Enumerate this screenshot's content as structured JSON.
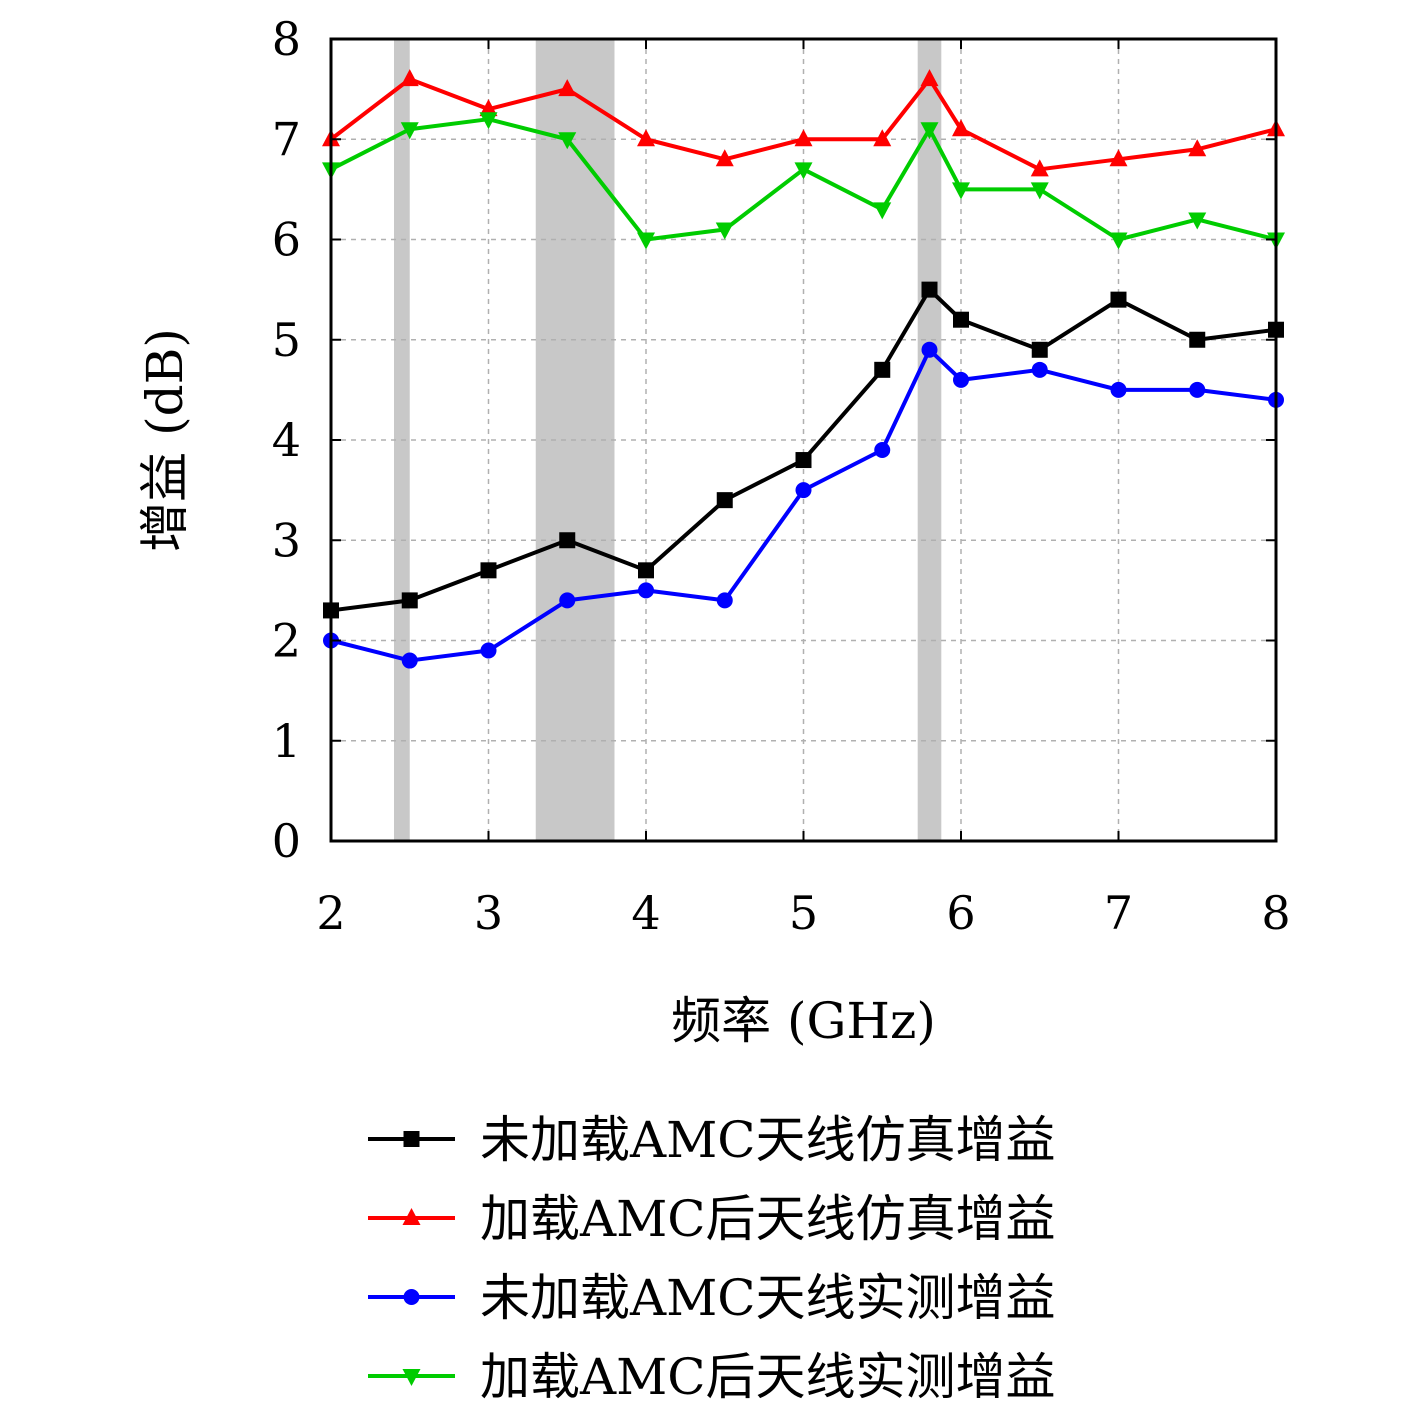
{
  "chart_data": {
    "type": "line",
    "title": "",
    "xlabel": "频率 (GHz)",
    "ylabel": "增益 (dB)",
    "xlim": [
      2,
      8
    ],
    "ylim": [
      0,
      8
    ],
    "xticks": [
      2,
      3,
      4,
      5,
      6,
      7,
      8
    ],
    "yticks": [
      0,
      1,
      2,
      3,
      4,
      5,
      6,
      7,
      8
    ],
    "grid": true,
    "legend_position": "bottom",
    "shaded_bands": [
      {
        "x0": 2.4,
        "x1": 2.5,
        "color": "#c8c8c8"
      },
      {
        "x0": 3.3,
        "x1": 3.8,
        "color": "#c8c8c8"
      },
      {
        "x0": 5.725,
        "x1": 5.875,
        "color": "#c8c8c8"
      }
    ],
    "series": [
      {
        "name": "未加载AMC天线仿真增益",
        "color": "#000000",
        "marker": "square",
        "x": [
          2,
          2.5,
          3,
          3.5,
          4,
          4.5,
          5,
          5.5,
          5.8,
          6,
          6.5,
          7,
          7.5,
          8
        ],
        "y": [
          2.3,
          2.4,
          2.7,
          3.0,
          2.7,
          3.4,
          3.8,
          4.7,
          5.5,
          5.2,
          4.9,
          5.4,
          5.0,
          5.1
        ]
      },
      {
        "name": "加载AMC后天线仿真增益",
        "color": "#ff0000",
        "marker": "triangle-up",
        "x": [
          2,
          2.5,
          3,
          3.5,
          4,
          4.5,
          5,
          5.5,
          5.8,
          6,
          6.5,
          7,
          7.5,
          8
        ],
        "y": [
          7.0,
          7.6,
          7.3,
          7.5,
          7.0,
          6.8,
          7.0,
          7.0,
          7.6,
          7.1,
          6.7,
          6.8,
          6.9,
          7.1
        ]
      },
      {
        "name": "未加载AMC天线实测增益",
        "color": "#0000ff",
        "marker": "circle",
        "x": [
          2,
          2.5,
          3,
          3.5,
          4,
          4.5,
          5,
          5.5,
          5.8,
          6,
          6.5,
          7,
          7.5,
          8
        ],
        "y": [
          2.0,
          1.8,
          1.9,
          2.4,
          2.5,
          2.4,
          3.5,
          3.9,
          4.9,
          4.6,
          4.7,
          4.5,
          4.5,
          4.4
        ]
      },
      {
        "name": "加载AMC后天线实测增益",
        "color": "#00cc00",
        "marker": "triangle-down",
        "x": [
          2,
          2.5,
          3,
          3.5,
          4,
          4.5,
          5,
          5.5,
          5.8,
          6,
          6.5,
          7,
          7.5,
          8
        ],
        "y": [
          6.7,
          7.1,
          7.2,
          7.0,
          6.0,
          6.1,
          6.7,
          6.3,
          7.1,
          6.5,
          6.5,
          6.0,
          6.2,
          6.0
        ]
      }
    ]
  }
}
